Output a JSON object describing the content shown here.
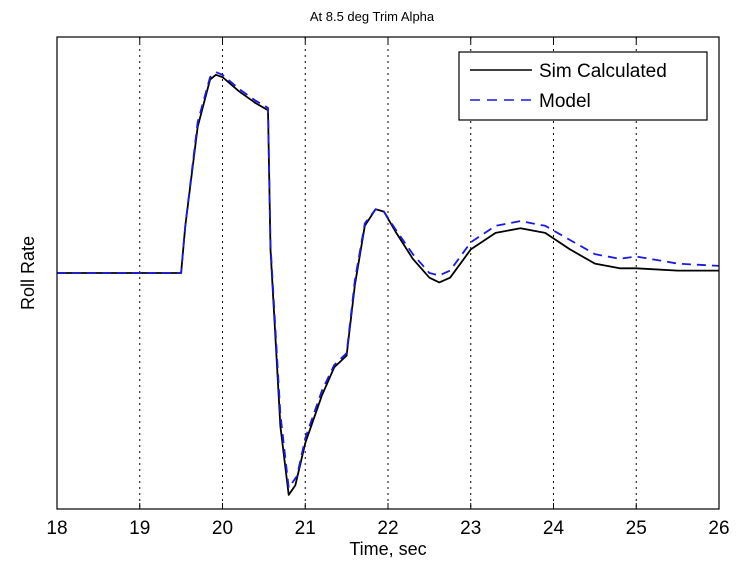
{
  "chart_data": {
    "type": "line",
    "title": "At 8.5 deg Trim Alpha",
    "xlabel": "Time, sec",
    "ylabel": "Roll Rate",
    "xlim": [
      18,
      26
    ],
    "ylim": [
      -1.0,
      1.0
    ],
    "x_ticks": [
      "18",
      "19",
      "20",
      "21",
      "22",
      "23",
      "24",
      "25",
      "26"
    ],
    "y_ticks_shown": false,
    "grid": "vertical dotted",
    "legend_position": "top-right",
    "series": [
      {
        "name": "Sim Calculated",
        "color": "#000000",
        "style": "solid",
        "points": [
          [
            18.0,
            0.0
          ],
          [
            19.0,
            0.0
          ],
          [
            19.5,
            0.0
          ],
          [
            19.55,
            0.2
          ],
          [
            19.7,
            0.62
          ],
          [
            19.85,
            0.82
          ],
          [
            19.92,
            0.84
          ],
          [
            20.0,
            0.83
          ],
          [
            20.2,
            0.77
          ],
          [
            20.4,
            0.72
          ],
          [
            20.55,
            0.69
          ],
          [
            20.58,
            0.1
          ],
          [
            20.62,
            -0.15
          ],
          [
            20.7,
            -0.65
          ],
          [
            20.8,
            -0.94
          ],
          [
            20.88,
            -0.9
          ],
          [
            21.0,
            -0.72
          ],
          [
            21.2,
            -0.52
          ],
          [
            21.35,
            -0.4
          ],
          [
            21.5,
            -0.35
          ],
          [
            21.6,
            -0.05
          ],
          [
            21.72,
            0.2
          ],
          [
            21.85,
            0.27
          ],
          [
            21.95,
            0.26
          ],
          [
            22.1,
            0.17
          ],
          [
            22.3,
            0.06
          ],
          [
            22.5,
            -0.02
          ],
          [
            22.62,
            -0.04
          ],
          [
            22.75,
            -0.02
          ],
          [
            23.0,
            0.1
          ],
          [
            23.3,
            0.17
          ],
          [
            23.6,
            0.19
          ],
          [
            23.9,
            0.17
          ],
          [
            24.2,
            0.1
          ],
          [
            24.5,
            0.04
          ],
          [
            24.8,
            0.02
          ],
          [
            25.0,
            0.02
          ],
          [
            25.5,
            0.01
          ],
          [
            26.0,
            0.01
          ]
        ]
      },
      {
        "name": "Model",
        "color": "#1a1adf",
        "style": "dashed",
        "points": [
          [
            18.0,
            0.0
          ],
          [
            19.0,
            0.0
          ],
          [
            19.5,
            0.0
          ],
          [
            19.55,
            0.2
          ],
          [
            19.7,
            0.64
          ],
          [
            19.85,
            0.83
          ],
          [
            19.93,
            0.85
          ],
          [
            20.0,
            0.84
          ],
          [
            20.2,
            0.78
          ],
          [
            20.4,
            0.73
          ],
          [
            20.55,
            0.7
          ],
          [
            20.58,
            0.12
          ],
          [
            20.62,
            -0.12
          ],
          [
            20.7,
            -0.6
          ],
          [
            20.8,
            -0.91
          ],
          [
            20.9,
            -0.86
          ],
          [
            21.0,
            -0.7
          ],
          [
            21.2,
            -0.5
          ],
          [
            21.35,
            -0.39
          ],
          [
            21.5,
            -0.34
          ],
          [
            21.6,
            -0.03
          ],
          [
            21.72,
            0.21
          ],
          [
            21.85,
            0.27
          ],
          [
            21.95,
            0.26
          ],
          [
            22.1,
            0.18
          ],
          [
            22.3,
            0.08
          ],
          [
            22.5,
            0.0
          ],
          [
            22.62,
            -0.01
          ],
          [
            22.75,
            0.01
          ],
          [
            23.0,
            0.13
          ],
          [
            23.3,
            0.2
          ],
          [
            23.6,
            0.22
          ],
          [
            23.9,
            0.2
          ],
          [
            24.2,
            0.14
          ],
          [
            24.5,
            0.08
          ],
          [
            24.8,
            0.06
          ],
          [
            25.0,
            0.07
          ],
          [
            25.5,
            0.04
          ],
          [
            26.0,
            0.03
          ]
        ]
      }
    ]
  }
}
